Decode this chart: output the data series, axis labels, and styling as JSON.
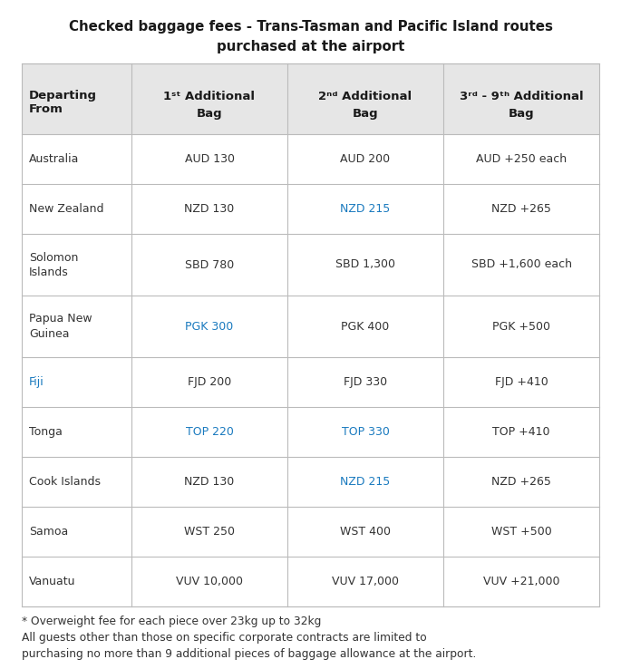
{
  "title_line1": "Checked baggage fees - Trans-Tasman and Pacific Island routes",
  "title_line2": "purchased at the airport",
  "rows": [
    {
      "destination": "Australia",
      "col1": "AUD 130",
      "col2": "AUD 200",
      "col3": "AUD +250 each",
      "dest_color": "#333333",
      "c1_color": "#333333",
      "c2_color": "#333333",
      "c3_color": "#333333"
    },
    {
      "destination": "New Zealand",
      "col1": "NZD 130",
      "col2": "NZD 215",
      "col3": "NZD +265",
      "dest_color": "#333333",
      "c1_color": "#333333",
      "c2_color": "#1a7abf",
      "c3_color": "#333333"
    },
    {
      "destination": "Solomon\nIslands",
      "col1": "SBD 780",
      "col2": "SBD 1,300",
      "col3": "SBD +1,600 each",
      "dest_color": "#333333",
      "c1_color": "#333333",
      "c2_color": "#333333",
      "c3_color": "#333333"
    },
    {
      "destination": "Papua New\nGuinea",
      "col1": "PGK 300",
      "col2": "PGK 400",
      "col3": "PGK +500",
      "dest_color": "#333333",
      "c1_color": "#1a7abf",
      "c2_color": "#333333",
      "c3_color": "#333333"
    },
    {
      "destination": "Fiji",
      "col1": "FJD 200",
      "col2": "FJD 330",
      "col3": "FJD +410",
      "dest_color": "#1a7abf",
      "c1_color": "#333333",
      "c2_color": "#333333",
      "c3_color": "#333333"
    },
    {
      "destination": "Tonga",
      "col1": "TOP 220",
      "col2": "TOP 330",
      "col3": "TOP +410",
      "dest_color": "#333333",
      "c1_color": "#1a7abf",
      "c2_color": "#1a7abf",
      "c3_color": "#333333"
    },
    {
      "destination": "Cook Islands",
      "col1": "NZD 130",
      "col2": "NZD 215",
      "col3": "NZD +265",
      "dest_color": "#333333",
      "c1_color": "#333333",
      "c2_color": "#1a7abf",
      "c3_color": "#333333"
    },
    {
      "destination": "Samoa",
      "col1": "WST 250",
      "col2": "WST 400",
      "col3": "WST +500",
      "dest_color": "#333333",
      "c1_color": "#333333",
      "c2_color": "#333333",
      "c3_color": "#333333"
    },
    {
      "destination": "Vanuatu",
      "col1": "VUV 10,000",
      "col2": "VUV 17,000",
      "col3": "VUV +21,000",
      "dest_color": "#333333",
      "c1_color": "#333333",
      "c2_color": "#333333",
      "c3_color": "#333333"
    }
  ],
  "footer_line1": "* Overweight fee for each piece over 23kg up to 32kg",
  "footer_line2": "All guests other than those on specific corporate contracts are limited to",
  "footer_line3": "purchasing no more than 9 additional pieces of baggage allowance at the airport.",
  "header_bg": "#e6e6e6",
  "border_color": "#bbbbbb",
  "title_color": "#1a1a1a",
  "header_text_color": "#1a1a1a",
  "body_text_color": "#333333",
  "bg_color": "#ffffff"
}
